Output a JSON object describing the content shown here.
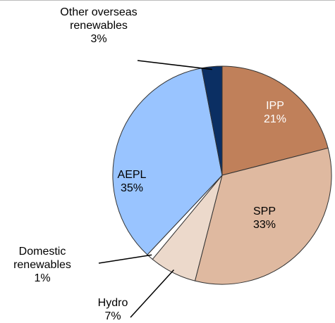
{
  "chart_data": {
    "type": "pie",
    "categories": [
      "IPP",
      "SPP",
      "Hydro",
      "Domestic renewables",
      "AEPL",
      "Other overseas renewables"
    ],
    "values": [
      21,
      33,
      7,
      1,
      35,
      3
    ],
    "value_labels": [
      "21%",
      "33%",
      "7%",
      "1%",
      "35%",
      "3%"
    ],
    "colors": [
      "#c0805a",
      "#dfb9a0",
      "#ecd9cb",
      "#ffffff",
      "#99c4ff",
      "#0b2f63"
    ]
  }
}
